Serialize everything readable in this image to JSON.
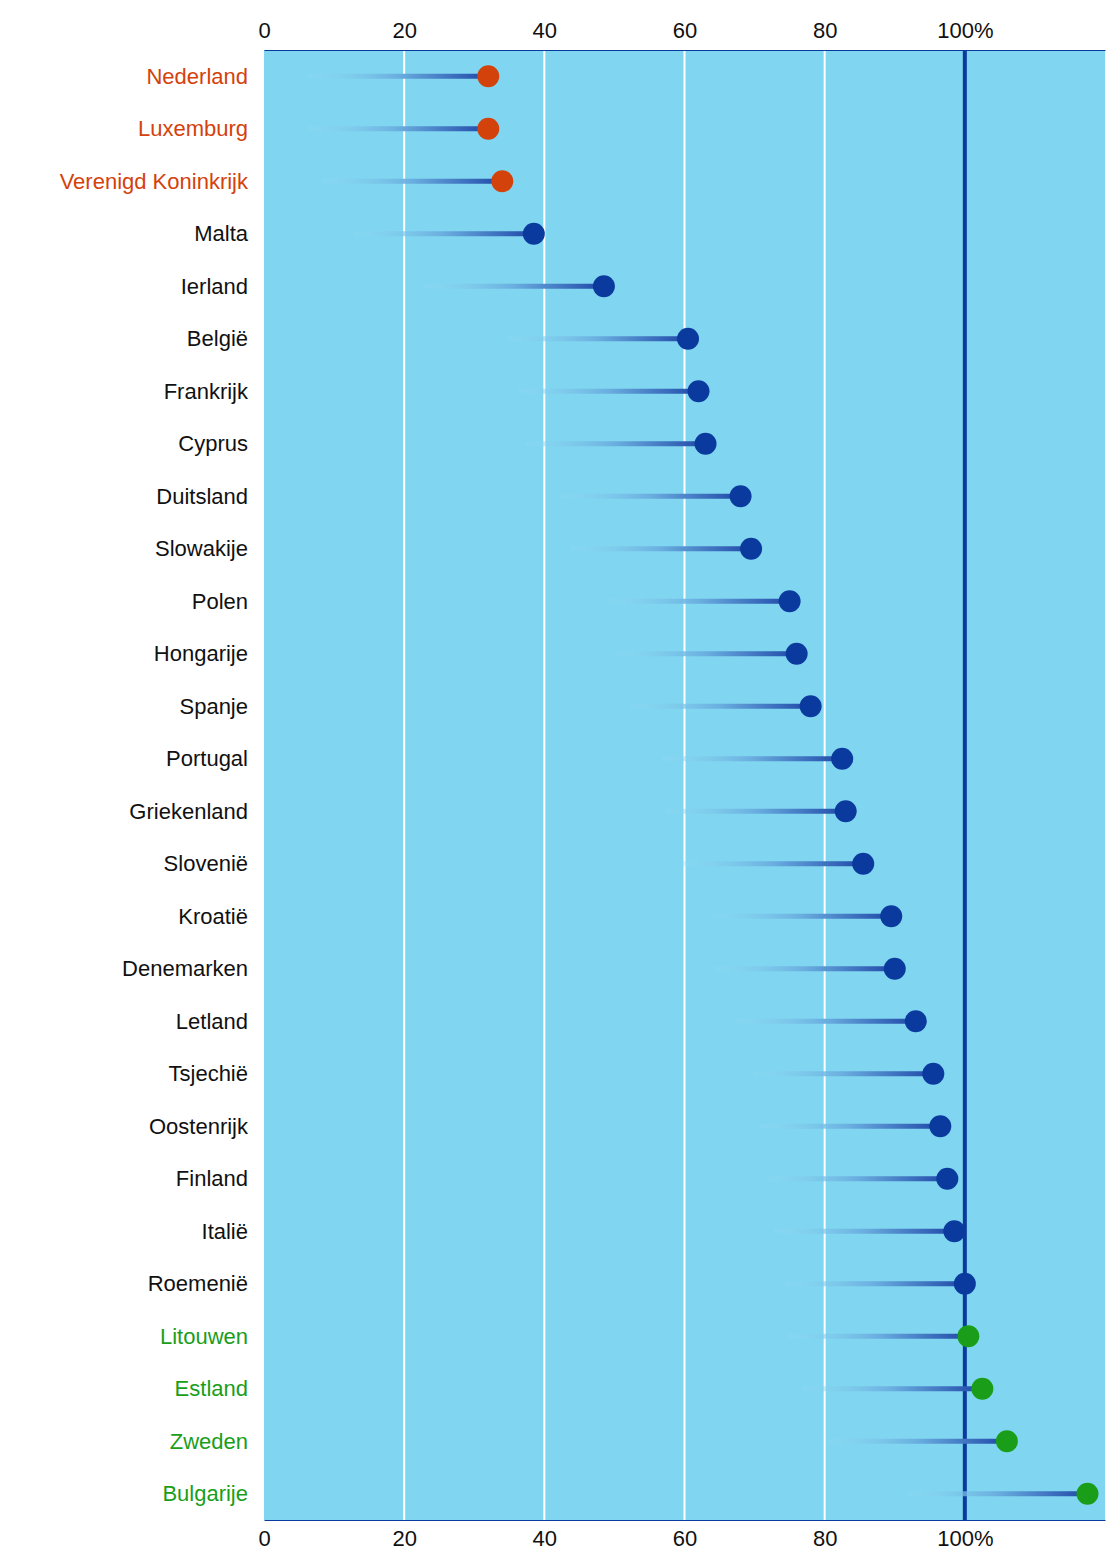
{
  "chart_data": {
    "type": "lollipop",
    "orientation": "horizontal",
    "categories": [
      "Nederland",
      "Luxemburg",
      "Verenigd Koninkrijk",
      "Malta",
      "Ierland",
      "België",
      "Frankrijk",
      "Cyprus",
      "Duitsland",
      "Slowakije",
      "Polen",
      "Hongarije",
      "Spanje",
      "Portugal",
      "Griekenland",
      "Slovenië",
      "Kroatië",
      "Denemarken",
      "Letland",
      "Tsjechië",
      "Oostenrijk",
      "Finland",
      "Italië",
      "Roemenië",
      "Litouwen",
      "Estland",
      "Zweden",
      "Bulgarije"
    ],
    "values": [
      32,
      32,
      34,
      38.5,
      48.5,
      60.5,
      62,
      63,
      68,
      69.5,
      75,
      76,
      78,
      82.5,
      83,
      85.5,
      89.5,
      90,
      93,
      95.5,
      96.5,
      97.5,
      98.5,
      100,
      100.5,
      102.5,
      106,
      117.5
    ],
    "color": "#0b3a9e",
    "colors": [
      "#d4420c",
      "#d4420c",
      "#d4420c",
      "#0b3a9e",
      "#0b3a9e",
      "#0b3a9e",
      "#0b3a9e",
      "#0b3a9e",
      "#0b3a9e",
      "#0b3a9e",
      "#0b3a9e",
      "#0b3a9e",
      "#0b3a9e",
      "#0b3a9e",
      "#0b3a9e",
      "#0b3a9e",
      "#0b3a9e",
      "#0b3a9e",
      "#0b3a9e",
      "#0b3a9e",
      "#0b3a9e",
      "#0b3a9e",
      "#0b3a9e",
      "#0b3a9e",
      "#1a9e1a",
      "#1a9e1a",
      "#1a9e1a",
      "#1a9e1a"
    ],
    "xlim": [
      0,
      120
    ],
    "xticks": [
      0,
      20,
      40,
      60,
      80,
      {
        "value": 100,
        "label": "100%"
      }
    ],
    "grid": true
  }
}
